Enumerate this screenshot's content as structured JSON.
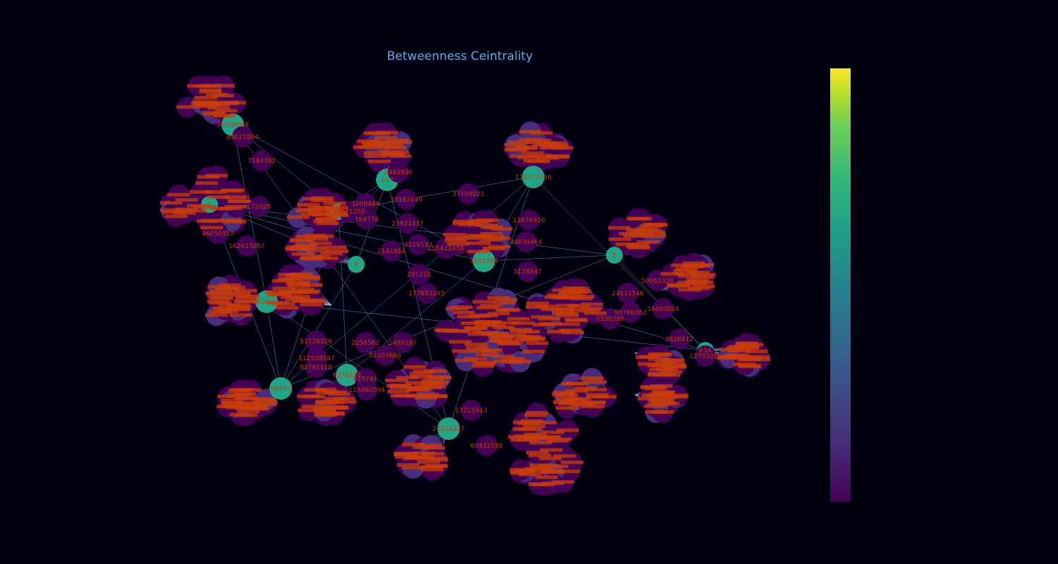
{
  "chart_data": {
    "type": "network",
    "title": "Betweenness Ceintrality",
    "colormap": "viridis",
    "colors": {
      "background": "#000011",
      "title": "#5dade2",
      "node_low": "#440154",
      "node_mid": "#472d7b",
      "node_hub": "#21a585",
      "edge": "#a9c4dc",
      "label": "#c83c0c"
    },
    "hubs": [
      {
        "label": "35269068"
      },
      {
        "label": "110373056"
      },
      {
        "label": "213"
      },
      {
        "label": "1611384"
      },
      {
        "label": "219607"
      },
      {
        "label": "90355"
      },
      {
        "label": "6270558"
      },
      {
        "label": "27834327"
      },
      {
        "label": "4"
      },
      {
        "label": "5"
      },
      {
        "label": "654"
      },
      {
        "label": "88"
      },
      {
        "label": "9"
      }
    ],
    "node_labels": [
      {
        "text": "89021804"
      },
      {
        "text": "7184782"
      },
      {
        "text": "425544"
      },
      {
        "text": "172029"
      },
      {
        "text": "46056959"
      },
      {
        "text": "162615057"
      },
      {
        "text": "37109021"
      },
      {
        "text": "38183149"
      },
      {
        "text": "3208444"
      },
      {
        "text": "169776"
      },
      {
        "text": "21921437"
      },
      {
        "text": "2141814"
      },
      {
        "text": "2216533"
      },
      {
        "text": "155422438"
      },
      {
        "text": "11676930"
      },
      {
        "text": "38039464"
      },
      {
        "text": "5178947"
      },
      {
        "text": "24611546"
      },
      {
        "text": "50862338"
      },
      {
        "text": "96766062"
      },
      {
        "text": "2558386"
      },
      {
        "text": "51538326"
      },
      {
        "text": "112538147"
      },
      {
        "text": "80761118"
      },
      {
        "text": "2258562"
      },
      {
        "text": "52303689"
      },
      {
        "text": "1480187"
      },
      {
        "text": "60432598"
      },
      {
        "text": "17215913"
      },
      {
        "text": "177693245"
      },
      {
        "text": "291216"
      },
      {
        "text": "2483950"
      },
      {
        "text": "410741"
      },
      {
        "text": "113460594"
      },
      {
        "text": "34460504"
      },
      {
        "text": "2828412"
      },
      {
        "text": "12793016"
      },
      {
        "text": "60871755"
      }
    ]
  }
}
